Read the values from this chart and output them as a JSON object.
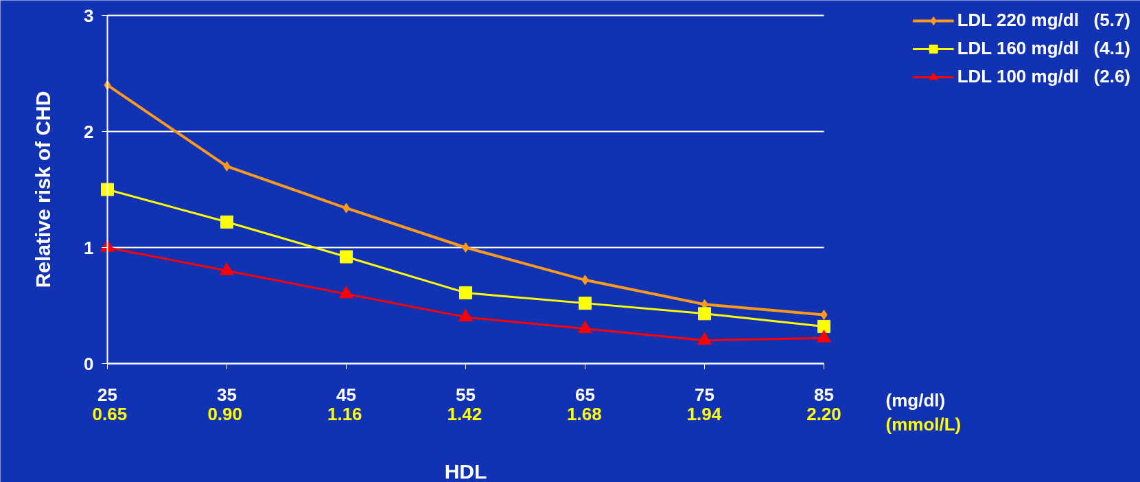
{
  "chart_data": {
    "type": "line",
    "xlabel": "HDL",
    "ylabel": "Relative risk of CHD",
    "x": [
      25,
      35,
      45,
      55,
      65,
      75,
      85
    ],
    "xlim": [
      25,
      85
    ],
    "xticks": [
      25,
      35,
      45,
      55,
      65,
      75,
      85
    ],
    "x2lim": [
      0.645,
      2.2
    ],
    "x2ticks": [
      0.65,
      {
        "value": 0.9,
        "label": "0.90"
      },
      1.16,
      1.42,
      1.68,
      1.94,
      {
        "value": 2.2,
        "label": "2.20"
      }
    ],
    "ylim": [
      0,
      3
    ],
    "yticks": [
      0,
      1,
      2,
      3
    ],
    "grid": "y",
    "legend": "top right",
    "series": [
      {
        "name": "LDL 220 mg/dl   (5.7)",
        "color": "#ff9a1a",
        "marker": "diamond",
        "values": [
          2.4,
          1.7,
          1.34,
          1.0,
          0.72,
          0.51,
          0.42
        ]
      },
      {
        "name": "LDL 160 mg/dl   (4.1)",
        "color": "#ffff00",
        "marker": "square",
        "values": [
          1.5,
          1.22,
          0.92,
          0.61,
          0.52,
          0.43,
          0.32
        ]
      },
      {
        "name": "LDL 100 mg/dl   (2.6)",
        "color": "#ff0000",
        "marker": "triangle",
        "values": [
          1.0,
          0.8,
          0.6,
          0.4,
          0.3,
          0.2,
          0.22
        ]
      }
    ],
    "annotations": [
      "(mg/dl)",
      "(mmol/L)"
    ]
  }
}
